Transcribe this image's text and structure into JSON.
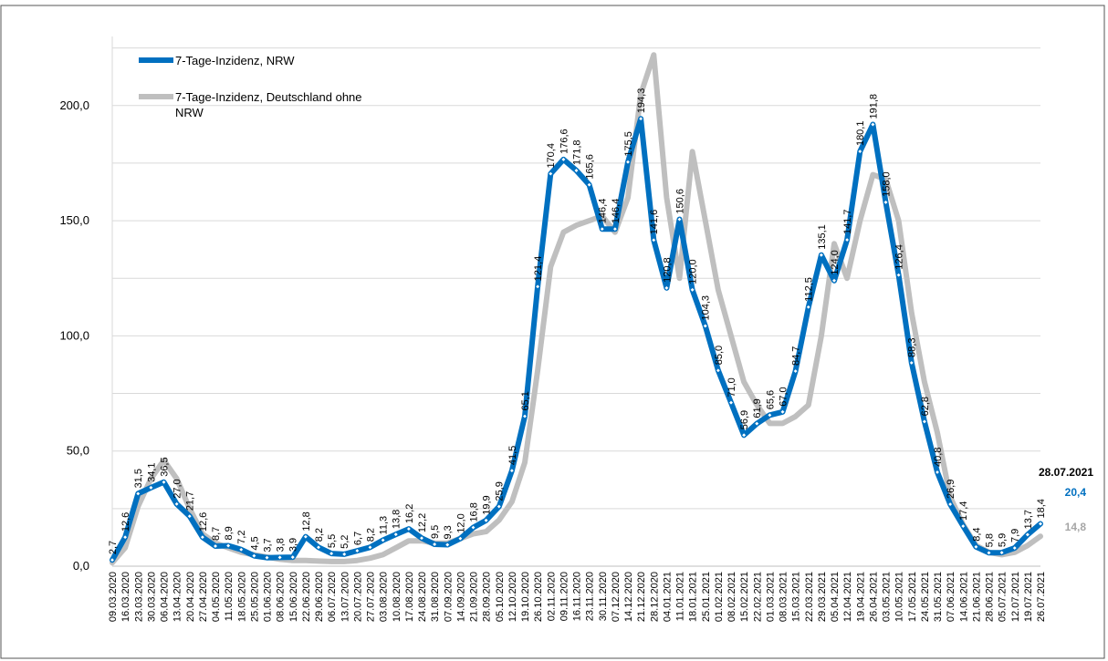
{
  "chart_data": {
    "type": "line",
    "title": "",
    "xlabel": "",
    "ylabel": "",
    "ylim": [
      0,
      230
    ],
    "yticks": [
      "0,0",
      "50,0",
      "100,0",
      "150,0",
      "200,0"
    ],
    "x_tick_labels": [
      "09.03.2020",
      "16.03.2020",
      "23.03.2020",
      "30.03.2020",
      "06.04.2020",
      "13.04.2020",
      "20.04.2020",
      "27.04.2020",
      "04.05.2020",
      "11.05.2020",
      "18.05.2020",
      "25.05.2020",
      "01.06.2020",
      "08.06.2020",
      "15.06.2020",
      "22.06.2020",
      "29.06.2020",
      "06.07.2020",
      "13.07.2020",
      "20.07.2020",
      "27.07.2020",
      "03.08.2020",
      "10.08.2020",
      "17.08.2020",
      "24.08.2020",
      "31.08.2020",
      "07.09.2020",
      "14.09.2020",
      "21.09.2020",
      "28.09.2020",
      "05.10.2020",
      "12.10.2020",
      "19.10.2020",
      "26.10.2020",
      "02.11.2020",
      "09.11.2020",
      "16.11.2020",
      "23.11.2020",
      "30.11.2020",
      "07.12.2020",
      "14.12.2020",
      "21.12.2020",
      "28.12.2020",
      "04.01.2021",
      "11.01.2021",
      "18.01.2021",
      "25.01.2021",
      "01.02.2021",
      "08.02.2021",
      "15.02.2021",
      "22.02.2021",
      "01.03.2021",
      "08.03.2021",
      "15.03.2021",
      "22.03.2021",
      "29.03.2021",
      "05.04.2021",
      "12.04.2021",
      "19.04.2021",
      "26.04.2021",
      "03.05.2021",
      "10.05.2021",
      "17.05.2021",
      "24.05.2021",
      "31.05.2021",
      "07.06.2021",
      "14.06.2021",
      "21.06.2021",
      "28.06.2021",
      "05.07.2021",
      "12.07.2021",
      "19.07.2021",
      "26.07.2021"
    ],
    "grid": true,
    "legend": "top-left",
    "series": [
      {
        "name": "7-Tage-Inzidenz, NRW",
        "color": "#0070C0",
        "values": [
          2.7,
          12.6,
          31.5,
          34.1,
          36.5,
          27.0,
          21.7,
          12.6,
          8.7,
          8.9,
          7.2,
          4.5,
          3.7,
          3.8,
          3.9,
          12.8,
          8.2,
          5.5,
          5.2,
          6.7,
          8.2,
          11.3,
          13.8,
          16.2,
          12.2,
          9.5,
          9.3,
          12.0,
          16.8,
          19.9,
          25.9,
          41.5,
          65.1,
          121.4,
          170.4,
          176.6,
          171.8,
          165.6,
          146.4,
          146.4,
          175.5,
          194.3,
          141.6,
          120.8,
          150.6,
          120.0,
          104.3,
          85.0,
          71.0,
          56.9,
          61.9,
          65.6,
          67.0,
          84.7,
          112.5,
          135.1,
          124.0,
          141.7,
          180.1,
          191.8,
          158.0,
          126.4,
          88.3,
          62.8,
          40.8,
          26.9,
          17.4,
          8.4,
          5.8,
          5.9,
          7.9,
          13.7,
          18.4
        ],
        "labels": [
          "2,7",
          "12,6",
          "31,5",
          "34,1",
          "36,5",
          "27,0",
          "21,7",
          "12,6",
          "8,7",
          "8,9",
          "7,2",
          "4,5",
          "3,7",
          "3,8",
          "3,9",
          "12,8",
          "8,2",
          "5,5",
          "5,2",
          "6,7",
          "8,2",
          "11,3",
          "13,8",
          "16,2",
          "12,2",
          "9,5",
          "9,3",
          "12,0",
          "16,8",
          "19,9",
          "25,9",
          "41,5",
          "65,1",
          "121,4",
          "170,4",
          "176,6",
          "171,8",
          "165,6",
          "146,4",
          "146,4",
          "175,5",
          "194,3",
          "141,6",
          "120,8",
          "150,6",
          "120,0",
          "104,3",
          "85,0",
          "71,0",
          "56,9",
          "61,9",
          "65,6",
          "67,0",
          "84,7",
          "112,5",
          "135,1",
          "124,0",
          "141,7",
          "180,1",
          "191,8",
          "158,0",
          "126,4",
          "88,3",
          "62,8",
          "40,8",
          "26,9",
          "17,4",
          "8,4",
          "5,8",
          "5,9",
          "7,9",
          "13,7",
          "18,4"
        ],
        "last_date": "28.07.2021",
        "last_value": "20,4"
      },
      {
        "name": "7-Tage-Inzidenz, Deutschland ohne NRW",
        "color": "#BFBFBF",
        "values": [
          1.5,
          8,
          26,
          38,
          46,
          38,
          25,
          14,
          10,
          8,
          6,
          5,
          4,
          3,
          2.5,
          2.5,
          2.2,
          2,
          2,
          2.5,
          3.5,
          5,
          8,
          11,
          11,
          10,
          10,
          12,
          14,
          15,
          20,
          28,
          45,
          85,
          130,
          145,
          148,
          150,
          152,
          145,
          160,
          205,
          222,
          160,
          125,
          180,
          150,
          120,
          100,
          80,
          70,
          62,
          62,
          65,
          70,
          100,
          140,
          125,
          150,
          170,
          168,
          150,
          110,
          80,
          58,
          30,
          18,
          9,
          6,
          5,
          6,
          9,
          13
        ],
        "last_value": "14,8"
      }
    ]
  }
}
